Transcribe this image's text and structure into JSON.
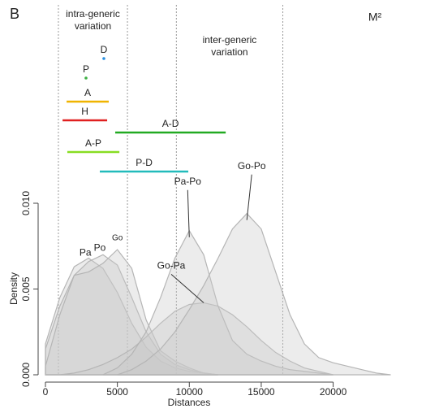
{
  "chart_data": {
    "type": "density",
    "panel_label": "B",
    "title": "M²",
    "xlabel": "Distances",
    "ylabel": "Density",
    "xlim": [
      0,
      27300
    ],
    "ylim": [
      0,
      0.01
    ],
    "xticks": [
      0,
      5000,
      10000,
      15000,
      20000
    ],
    "yticks": [
      {
        "value": 0,
        "label": "0.000"
      },
      {
        "value": 0.005,
        "label": "0.005"
      },
      {
        "value": 0.01,
        "label": "0.010"
      }
    ],
    "vlines": [
      900,
      5700,
      9100,
      16500
    ],
    "annotations": [
      {
        "lines": [
          "intra-generic",
          "variation"
        ]
      },
      {
        "lines": [
          "inter-generic",
          "variation"
        ]
      }
    ],
    "series": [
      {
        "name": "Pa",
        "x": [
          0,
          1000,
          2000,
          3000,
          4000,
          5000,
          6000,
          7000,
          8000,
          9000,
          10000,
          11000,
          12000
        ],
        "values": [
          0.0018,
          0.0045,
          0.0063,
          0.0068,
          0.0062,
          0.0048,
          0.003,
          0.0016,
          0.0008,
          0.0004,
          0.0002,
          0.0001,
          0
        ]
      },
      {
        "name": "Po",
        "x": [
          0,
          1000,
          2000,
          3000,
          4000,
          5000,
          6000,
          7000,
          8000,
          9000,
          10000,
          11000,
          12000
        ],
        "values": [
          0.0015,
          0.004,
          0.0058,
          0.0066,
          0.007,
          0.0064,
          0.0045,
          0.0025,
          0.0012,
          0.0006,
          0.0003,
          0.0001,
          0
        ]
      },
      {
        "name": "Go",
        "x": [
          0,
          1000,
          2000,
          3000,
          4000,
          5000,
          6000,
          7000,
          8000,
          9000,
          10000,
          11000,
          12000
        ],
        "values": [
          0.0005,
          0.0035,
          0.0058,
          0.006,
          0.0065,
          0.0073,
          0.0062,
          0.0032,
          0.0014,
          0.0008,
          0.0004,
          0.0001,
          0
        ]
      },
      {
        "name": "Go-Pa",
        "x": [
          0,
          1000,
          2000,
          3000,
          4000,
          5000,
          6000,
          7000,
          8000,
          9000,
          10000,
          11000,
          12000,
          13000,
          14000,
          15000,
          16000,
          17000,
          18000,
          19000,
          20000
        ],
        "values": [
          0,
          0,
          0.0001,
          0.0003,
          0.0006,
          0.001,
          0.0015,
          0.0022,
          0.003,
          0.0037,
          0.0041,
          0.0042,
          0.004,
          0.0035,
          0.0028,
          0.002,
          0.0013,
          0.0008,
          0.0004,
          0.0002,
          0
        ]
      },
      {
        "name": "Pa-Po",
        "x": [
          4000,
          5000,
          6000,
          7000,
          8000,
          9000,
          10000,
          11000,
          12000,
          13000,
          14000,
          15000,
          16000,
          17000,
          18000,
          19000,
          20000
        ],
        "values": [
          0,
          0.0004,
          0.0012,
          0.0025,
          0.0045,
          0.0068,
          0.0084,
          0.007,
          0.004,
          0.002,
          0.0012,
          0.0008,
          0.0005,
          0.0003,
          0.0002,
          0.0001,
          0
        ]
      },
      {
        "name": "Go-Po",
        "x": [
          5000,
          6000,
          7000,
          8000,
          9000,
          10000,
          11000,
          12000,
          13000,
          14000,
          15000,
          16000,
          17000,
          18000,
          19000,
          20000,
          21000,
          22000,
          23000,
          24000
        ],
        "values": [
          0,
          0.0003,
          0.0008,
          0.0015,
          0.0025,
          0.0038,
          0.0052,
          0.0068,
          0.0085,
          0.0094,
          0.0085,
          0.006,
          0.0035,
          0.0018,
          0.001,
          0.0007,
          0.0005,
          0.0003,
          0.0001,
          0
        ]
      }
    ],
    "ranges": [
      {
        "name": "D",
        "start": 4060,
        "end": 4060,
        "color": "#2a8fe0"
      },
      {
        "name": "P",
        "start": 2820,
        "end": 2820,
        "color": "#3cb043"
      },
      {
        "name": "A",
        "start": 1470,
        "end": 4400,
        "color": "#f0b400"
      },
      {
        "name": "H",
        "start": 1190,
        "end": 4290,
        "color": "#e02020"
      },
      {
        "name": "A-D",
        "start": 4850,
        "end": 12530,
        "color": "#22aa22"
      },
      {
        "name": "A-P",
        "start": 1520,
        "end": 5140,
        "color": "#88dd22"
      },
      {
        "name": "P-D",
        "start": 3780,
        "end": 9930,
        "color": "#22bbbb"
      }
    ]
  }
}
